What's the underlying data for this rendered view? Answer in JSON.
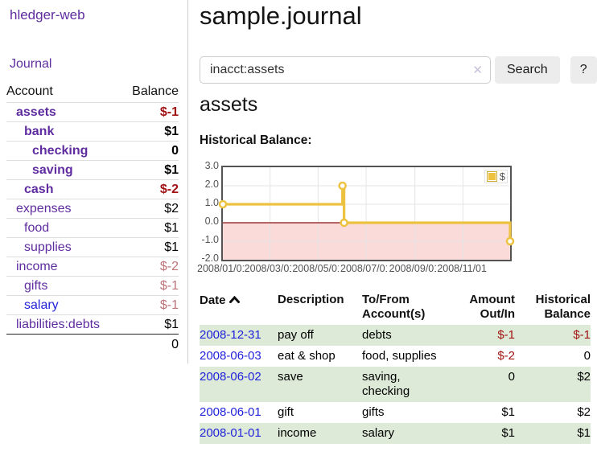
{
  "app": {
    "name": "hledger-web"
  },
  "sidebar": {
    "nav": {
      "journal": "Journal"
    },
    "accounts_table": {
      "headers": {
        "account": "Account",
        "balance": "Balance"
      },
      "rows": [
        {
          "name": "assets",
          "balance": "$-1",
          "level": 1,
          "bold": true,
          "balance_color": "negstrong"
        },
        {
          "name": "bank",
          "balance": "$1",
          "level": 2,
          "bold": true,
          "balance_color": "plain"
        },
        {
          "name": "checking",
          "balance": "0",
          "level": 3,
          "bold": true,
          "balance_color": "plain"
        },
        {
          "name": "saving",
          "balance": "$1",
          "level": 3,
          "bold": true,
          "balance_color": "plain"
        },
        {
          "name": "cash",
          "balance": "$-2",
          "level": 2,
          "bold": true,
          "balance_color": "negstrong"
        },
        {
          "name": "expenses",
          "balance": "$2",
          "level": 1,
          "bold": false,
          "balance_color": "plain"
        },
        {
          "name": "food",
          "balance": "$1",
          "level": 2,
          "bold": false,
          "balance_color": "plain"
        },
        {
          "name": "supplies",
          "balance": "$1",
          "level": 2,
          "bold": false,
          "balance_color": "plain"
        },
        {
          "name": "income",
          "balance": "$-2",
          "level": 1,
          "bold": false,
          "balance_color": "negsoft"
        },
        {
          "name": "gifts",
          "balance": "$-1",
          "level": 2,
          "bold": false,
          "balance_color": "negsoft"
        },
        {
          "name": "salary",
          "balance": "$-1",
          "level": 2,
          "bold": false,
          "balance_color": "negsoft",
          "link_color": "blue"
        },
        {
          "name": "liabilities:debts",
          "balance": "$1",
          "level": 1,
          "bold": false,
          "balance_color": "plain"
        }
      ],
      "total": "0"
    }
  },
  "header": {
    "title": "sample.journal"
  },
  "search": {
    "value": "inacct:assets",
    "clear_icon": "✕",
    "button_label": "Search",
    "help_label": "?"
  },
  "account_page": {
    "heading": "assets",
    "chart_label": "Historical Balance:"
  },
  "chart_data": {
    "type": "line",
    "step": true,
    "title": "",
    "xlabel": "",
    "ylabel": "",
    "grid": true,
    "ylim": [
      -2,
      3
    ],
    "yticks": [
      {
        "value": 3,
        "label": "3.0"
      },
      {
        "value": 2,
        "label": "2.0"
      },
      {
        "value": 1,
        "label": "1.0"
      },
      {
        "value": 0,
        "label": "0.0"
      },
      {
        "value": -1,
        "label": "-1.0"
      },
      {
        "value": -2,
        "label": "-2.0"
      }
    ],
    "x_range_days": [
      0,
      365
    ],
    "xticks": [
      {
        "day": 0,
        "label": "2008/01/01"
      },
      {
        "day": 60,
        "label": "2008/03/01"
      },
      {
        "day": 121,
        "label": "2008/05/01"
      },
      {
        "day": 182,
        "label": "2008/07/01"
      },
      {
        "day": 244,
        "label": "2008/09/01"
      },
      {
        "day": 305,
        "label": "2008/11/01"
      }
    ],
    "series": [
      {
        "name": "$",
        "color": "#edc240",
        "points": [
          {
            "date": "2008-01-01",
            "x_day": 0,
            "y": 1
          },
          {
            "date": "2008-06-01",
            "x_day": 152,
            "y": 2
          },
          {
            "date": "2008-06-03",
            "x_day": 154,
            "y": 0
          },
          {
            "date": "2008-12-31",
            "x_day": 365,
            "y": -1
          }
        ]
      }
    ],
    "legend": {
      "position": "top-right",
      "label": "$"
    },
    "colors": {
      "line": "#edc240",
      "marker_fill": "#ffffff",
      "negative_region_fill": "#fbdada",
      "zero_line": "#8b1111",
      "plot_border": "#545454",
      "gridline": "#e4e4e4",
      "tick_text": "#545454"
    }
  },
  "register": {
    "headers": {
      "date": "Date",
      "description": "Description",
      "account": "To/From Account(s)",
      "amount": "Amount Out/In",
      "balance": "Historical Balance"
    },
    "rows": [
      {
        "date": "2008-12-31",
        "description": "pay off",
        "accounts": "debts",
        "amount": "$-1",
        "amount_neg": true,
        "balance": "$-1",
        "balance_neg": true
      },
      {
        "date": "2008-06-03",
        "description": "eat & shop",
        "accounts": "food, supplies",
        "amount": "$-2",
        "amount_neg": true,
        "balance": "0",
        "balance_neg": false
      },
      {
        "date": "2008-06-02",
        "description": "save",
        "accounts": "saving, checking",
        "amount": "0",
        "amount_neg": false,
        "balance": "$2",
        "balance_neg": false
      },
      {
        "date": "2008-06-01",
        "description": "gift",
        "accounts": "gifts",
        "amount": "$1",
        "amount_neg": false,
        "balance": "$2",
        "balance_neg": false
      },
      {
        "date": "2008-01-01",
        "description": "income",
        "accounts": "salary",
        "amount": "$1",
        "amount_neg": false,
        "balance": "$1",
        "balance_neg": false
      }
    ]
  }
}
